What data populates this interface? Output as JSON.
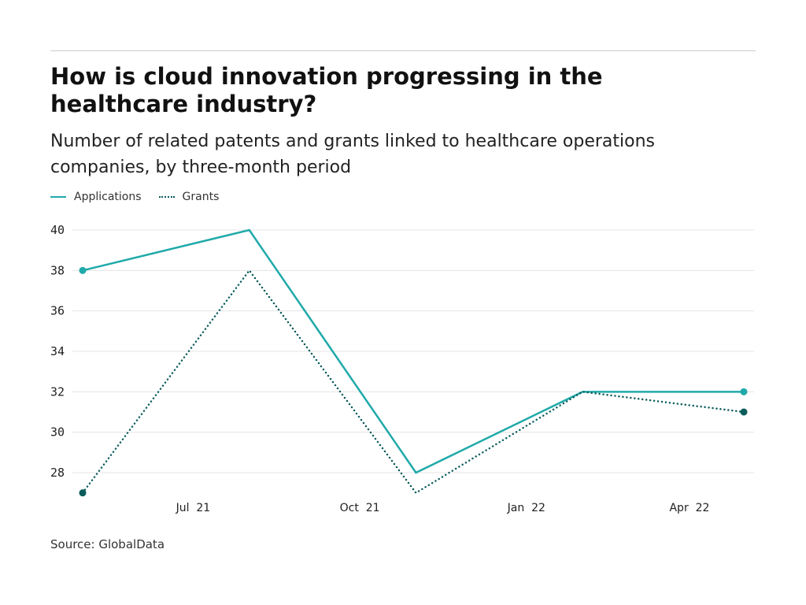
{
  "title": "How is cloud innovation progressing in the healthcare industry?",
  "subtitle": "Number of related patents and grants linked to healthcare operations companies, by three-month period",
  "source": "Source: GlobalData",
  "chart_data": {
    "type": "line",
    "x": [
      "2021-05-01",
      "2021-08-01",
      "2021-11-01",
      "2022-02-01",
      "2022-05-01"
    ],
    "series": [
      {
        "name": "Applications",
        "values": [
          38,
          40,
          28,
          32,
          32
        ],
        "color": "#20a9a9",
        "style": "solid"
      },
      {
        "name": "Grants",
        "values": [
          27,
          38,
          27,
          32,
          31
        ],
        "color": "#0b5c5c",
        "style": "dotted"
      }
    ],
    "yticks": [
      28,
      30,
      32,
      34,
      36,
      38,
      40
    ],
    "ytick_labels": [
      "28",
      "30",
      "32",
      "34",
      "36",
      "38",
      "40"
    ],
    "xticks": [
      "2021-07-01",
      "2021-10-01",
      "2022-01-01",
      "2022-04-01"
    ],
    "xtick_labels": [
      "Jul  21",
      "Oct  21",
      "Jan  22",
      "Apr  22"
    ],
    "ylim": [
      27,
      40
    ],
    "grid": true,
    "legend": "top-left",
    "xlabel": "",
    "ylabel": ""
  }
}
